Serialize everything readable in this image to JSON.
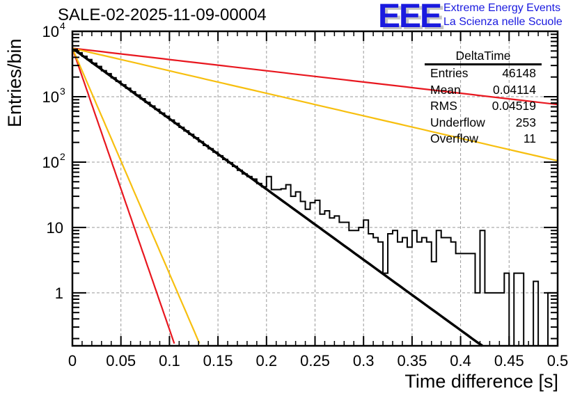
{
  "chart_data": {
    "type": "line",
    "title": "SALE-02-2025-11-09-00004",
    "xlabel": "Time difference [s]",
    "ylabel": "Entries/bin",
    "xlim": [
      0,
      0.5
    ],
    "ylim": [
      0.155,
      10000
    ],
    "yscale": "log",
    "grid": true,
    "x_ticks": [
      "0",
      "0.05",
      "0.1",
      "0.15",
      "0.2",
      "0.25",
      "0.3",
      "0.35",
      "0.4",
      "0.45",
      "0.5"
    ],
    "x_tick_values": [
      0,
      0.05,
      0.1,
      0.15,
      0.2,
      0.25,
      0.3,
      0.35,
      0.4,
      0.45,
      0.5
    ],
    "y_ticks": [
      {
        "value": 10000,
        "base": "10",
        "exp": "4"
      },
      {
        "value": 1000,
        "base": "10",
        "exp": "3"
      },
      {
        "value": 100,
        "base": "10",
        "exp": "2"
      },
      {
        "value": 10,
        "base": "10",
        "exp": ""
      },
      {
        "value": 1,
        "base": "1",
        "exp": ""
      }
    ],
    "histogram": {
      "name": "DeltaTime",
      "bin_width": 0.005,
      "x_start": 0,
      "color": "#000000",
      "values": [
        5300,
        4700,
        4150,
        3700,
        3250,
        2900,
        2500,
        2250,
        1950,
        1720,
        1520,
        1350,
        1190,
        1060,
        930,
        820,
        720,
        640,
        560,
        500,
        440,
        390,
        340,
        300,
        265,
        235,
        205,
        180,
        160,
        142,
        125,
        110,
        98,
        86,
        75,
        66,
        60,
        55,
        47,
        42,
        60,
        38,
        38,
        39,
        45,
        30,
        35,
        25,
        19,
        24,
        26,
        16,
        18,
        14,
        15,
        12,
        12,
        9,
        9,
        10,
        13,
        8,
        7,
        6,
        2,
        8,
        9,
        6,
        7,
        5,
        9,
        6,
        7,
        6,
        3,
        9,
        7,
        7,
        6,
        4,
        4,
        4,
        4,
        1,
        9,
        1,
        1,
        1,
        1,
        2,
        0,
        2,
        2,
        0,
        0,
        1.5,
        0,
        0,
        1,
        1
      ]
    },
    "series": [
      {
        "name": "fit",
        "color": "#000000",
        "type": "exponential",
        "y0": 5500,
        "tau": 0.0403,
        "x_range": [
          0,
          0.4225
        ]
      },
      {
        "name": "red-steep",
        "color": "#e8171f",
        "type": "exponential",
        "y0": 5500,
        "tau": 0.0101,
        "x_range": [
          0,
          0.105
        ]
      },
      {
        "name": "yellow-steep",
        "color": "#f7bf0f",
        "type": "exponential",
        "y0": 5500,
        "tau": 0.0126,
        "x_range": [
          0,
          0.131
        ]
      },
      {
        "name": "red-shallow",
        "color": "#e8171f",
        "type": "exponential",
        "y0": 5500,
        "tau": 0.2526,
        "x_range": [
          0,
          0.5
        ]
      },
      {
        "name": "yellow-shallow",
        "color": "#f7bf0f",
        "type": "exponential",
        "y0": 5500,
        "tau": 0.1262,
        "x_range": [
          0,
          0.5
        ]
      }
    ]
  },
  "stats_box": {
    "title": "DeltaTime",
    "rows": [
      {
        "label": "Entries",
        "value": "46148"
      },
      {
        "label": "Mean",
        "value": "0.04114"
      },
      {
        "label": "RMS",
        "value": "0.04519"
      },
      {
        "label": "Underflow",
        "value": "253"
      },
      {
        "label": "Overflow",
        "value": "11"
      }
    ]
  },
  "logo": {
    "letters": "EEE",
    "line1": "Extreme Energy Events",
    "line2": "La Scienza nelle Scuole",
    "color": "#1a1adf"
  }
}
